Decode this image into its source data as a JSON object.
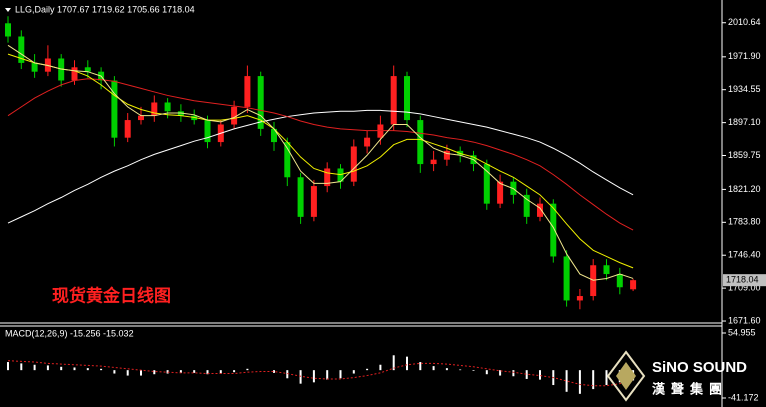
{
  "chart_data": [
    {
      "type": "candlestick",
      "title": "LLG,Daily 1707.67 1719.62 1705.66 1718.04",
      "annotation": "现货黄金日线图",
      "up_color": "#ff2020",
      "down_color": "#00d000",
      "open": [
        2010,
        1995,
        1965,
        1955,
        1970,
        1945,
        1960,
        1955,
        1945,
        1880,
        1900,
        1905,
        1920,
        1910,
        1905,
        1900,
        1875,
        1895,
        1915,
        1950,
        1890,
        1875,
        1835,
        1790,
        1825,
        1845,
        1830,
        1870,
        1880,
        1895,
        1950,
        1900,
        1850,
        1855,
        1865,
        1860,
        1850,
        1805,
        1830,
        1815,
        1790,
        1805,
        1745,
        1695,
        1700,
        1735,
        1725,
        1707.67
      ],
      "high": [
        2018,
        2002,
        1975,
        1985,
        1975,
        1968,
        1968,
        1960,
        1950,
        1908,
        1915,
        1928,
        1925,
        1918,
        1912,
        1905,
        1900,
        1922,
        1962,
        1955,
        1898,
        1880,
        1840,
        1832,
        1852,
        1850,
        1878,
        1888,
        1905,
        1962,
        1955,
        1905,
        1865,
        1872,
        1870,
        1865,
        1855,
        1838,
        1835,
        1822,
        1812,
        1810,
        1752,
        1708,
        1742,
        1742,
        1732,
        1719.62
      ],
      "low": [
        1988,
        1958,
        1948,
        1950,
        1938,
        1940,
        1948,
        1935,
        1870,
        1875,
        1895,
        1898,
        1902,
        1898,
        1895,
        1868,
        1870,
        1890,
        1908,
        1882,
        1865,
        1825,
        1782,
        1785,
        1818,
        1822,
        1825,
        1862,
        1872,
        1888,
        1892,
        1840,
        1842,
        1848,
        1852,
        1842,
        1798,
        1800,
        1805,
        1782,
        1785,
        1738,
        1688,
        1685,
        1695,
        1718,
        1702,
        1705.66
      ],
      "close": [
        1995,
        1965,
        1955,
        1970,
        1945,
        1960,
        1955,
        1945,
        1880,
        1900,
        1905,
        1920,
        1910,
        1905,
        1900,
        1875,
        1895,
        1915,
        1950,
        1890,
        1875,
        1835,
        1790,
        1825,
        1845,
        1830,
        1870,
        1880,
        1895,
        1950,
        1900,
        1850,
        1855,
        1865,
        1860,
        1850,
        1805,
        1830,
        1815,
        1790,
        1805,
        1745,
        1695,
        1700,
        1735,
        1725,
        1710,
        1718.04
      ],
      "series": [
        {
          "color": "#ffffff",
          "values": [
            1783,
            1790,
            1797,
            1805,
            1812,
            1820,
            1827,
            1835,
            1842,
            1848,
            1855,
            1861,
            1866,
            1871,
            1876,
            1880,
            1885,
            1890,
            1894,
            1898,
            1901,
            1904,
            1906,
            1908,
            1909,
            1910,
            1910,
            1911,
            1911,
            1910,
            1909,
            1907,
            1904,
            1901,
            1898,
            1895,
            1892,
            1888,
            1884,
            1880,
            1875,
            1868,
            1860,
            1851,
            1841,
            1832,
            1823,
            1815
          ]
        },
        {
          "color": "#e02020",
          "values": [
            1905,
            1915,
            1925,
            1933,
            1940,
            1945,
            1947,
            1946,
            1944,
            1940,
            1936,
            1932,
            1928,
            1925,
            1922,
            1920,
            1918,
            1916,
            1914,
            1911,
            1908,
            1904,
            1899,
            1895,
            1892,
            1890,
            1889,
            1888,
            1888,
            1888,
            1887,
            1885,
            1883,
            1880,
            1878,
            1875,
            1871,
            1866,
            1861,
            1855,
            1848,
            1838,
            1827,
            1815,
            1804,
            1793,
            1783,
            1775
          ]
        },
        {
          "color": "#f0f000",
          "values": [
            1975,
            1970,
            1965,
            1962,
            1958,
            1956,
            1950,
            1940,
            1928,
            1918,
            1912,
            1908,
            1906,
            1905,
            1903,
            1900,
            1900,
            1902,
            1905,
            1900,
            1890,
            1875,
            1858,
            1845,
            1840,
            1838,
            1842,
            1848,
            1858,
            1872,
            1878,
            1878,
            1873,
            1868,
            1862,
            1858,
            1850,
            1842,
            1835,
            1825,
            1815,
            1800,
            1782,
            1765,
            1752,
            1745,
            1738,
            1732
          ]
        },
        {
          "color": "#f0e68c",
          "values": [
            1985,
            1975,
            1965,
            1962,
            1958,
            1956,
            1955,
            1950,
            1930,
            1915,
            1905,
            1905,
            1908,
            1908,
            1906,
            1900,
            1898,
            1903,
            1912,
            1905,
            1890,
            1868,
            1842,
            1828,
            1828,
            1830,
            1845,
            1860,
            1878,
            1895,
            1895,
            1880,
            1868,
            1862,
            1860,
            1855,
            1842,
            1828,
            1822,
            1810,
            1800,
            1778,
            1748,
            1725,
            1718,
            1720,
            1725,
            1720
          ]
        }
      ],
      "ylim": [
        1670.5,
        2030.8
      ],
      "yticks": [
        2010.64,
        {
          "value": 1971.9,
          "label": "1971.90"
        },
        1934.55,
        {
          "value": 1897.1,
          "label": "1897.10"
        },
        1859.75,
        {
          "value": 1821.2,
          "label": "1821.20"
        },
        {
          "value": 1783.8,
          "label": "1783.80"
        },
        {
          "value": 1746.4,
          "label": "1746.40"
        },
        {
          "value": 1709,
          "label": "1709.00"
        },
        {
          "value": 1671.6,
          "label": "1671.60"
        }
      ]
    },
    {
      "type": "bar",
      "title": "MACD(12,26,9) -15.256 -15.032",
      "color": "#ffffff",
      "values": [
        12,
        10,
        8,
        7,
        5,
        4,
        3,
        2,
        -5,
        -8,
        -8,
        -6,
        -5,
        -4,
        -4,
        -6,
        -5,
        -3,
        2,
        0,
        -4,
        -12,
        -20,
        -18,
        -14,
        -12,
        -5,
        2,
        8,
        22,
        20,
        12,
        6,
        3,
        1,
        -1,
        -6,
        -8,
        -9,
        -13,
        -14,
        -22,
        -32,
        -35,
        -28,
        -22,
        -18,
        -15.256
      ],
      "signal": {
        "color": "#e02020",
        "values": [
          14,
          13,
          12,
          10,
          9,
          8,
          7,
          6,
          4,
          2,
          0,
          -2,
          -3,
          -4,
          -4,
          -5,
          -5,
          -5,
          -3,
          -2,
          -2,
          -5,
          -9,
          -12,
          -13,
          -13,
          -11,
          -8,
          -4,
          3,
          8,
          10,
          10,
          9,
          7,
          5,
          2,
          -1,
          -3,
          -6,
          -8,
          -11,
          -16,
          -21,
          -23,
          -23,
          -20,
          -15.032
        ]
      },
      "ylim": [
        -41.172,
        54.955
      ],
      "yticks": [
        54.955,
        -41.172
      ]
    }
  ],
  "logo": {
    "name": "SiNO SOUND",
    "subtitle": "漢聲集團"
  }
}
